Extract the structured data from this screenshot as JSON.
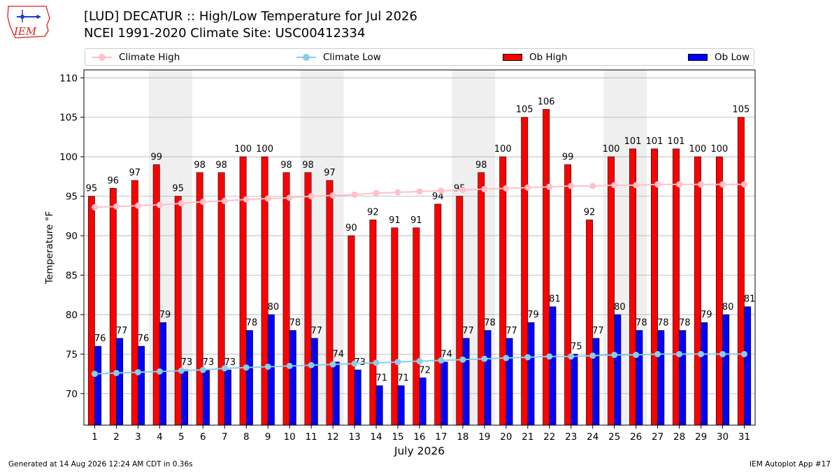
{
  "header": {
    "title_line1": "[LUD] DECATUR :: High/Low Temperature for Jul 2026",
    "title_line2": "NCEI 1991-2020 Climate Site: USC00412334",
    "logo_text": "IEM"
  },
  "legend": {
    "items": [
      {
        "label": "Climate High",
        "color": "#ffc0cb",
        "kind": "line"
      },
      {
        "label": "Climate Low",
        "color": "#87ceeb",
        "kind": "line"
      },
      {
        "label": "Ob High",
        "color": "#ff0000",
        "kind": "box"
      },
      {
        "label": "Ob Low",
        "color": "#0000ff",
        "kind": "box"
      }
    ]
  },
  "footer": {
    "left": "Generated at 14 Aug 2026 12:24 AM CDT in 0.36s",
    "right": "IEM Autoplot App #17"
  },
  "chart_data": {
    "type": "bar",
    "xlabel": "July 2026",
    "ylabel": "Temperature °F",
    "ylim": [
      66,
      111
    ],
    "yticks": [
      70,
      75,
      80,
      85,
      90,
      95,
      100,
      105,
      110
    ],
    "grid": true,
    "legend_position": "top",
    "categories": [
      "1",
      "2",
      "3",
      "4",
      "5",
      "6",
      "7",
      "8",
      "9",
      "10",
      "11",
      "12",
      "13",
      "14",
      "15",
      "16",
      "17",
      "18",
      "19",
      "20",
      "21",
      "22",
      "23",
      "24",
      "25",
      "26",
      "27",
      "28",
      "29",
      "30",
      "31"
    ],
    "weekend_shaded_days": [
      4,
      5,
      11,
      12,
      18,
      19,
      25,
      26
    ],
    "series": [
      {
        "name": "Ob High",
        "type": "bar",
        "color": "#ff0000",
        "values": [
          95,
          96,
          97,
          99,
          95,
          98,
          98,
          100,
          100,
          98,
          98,
          97,
          90,
          92,
          91,
          91,
          94,
          95,
          98,
          100,
          105,
          106,
          99,
          92,
          100,
          101,
          101,
          101,
          100,
          100,
          105
        ]
      },
      {
        "name": "Ob Low",
        "type": "bar",
        "color": "#0000ff",
        "values": [
          76,
          77,
          76,
          79,
          73,
          73,
          73,
          78,
          80,
          78,
          77,
          74,
          73,
          71,
          71,
          72,
          74,
          77,
          78,
          77,
          79,
          81,
          75,
          77,
          80,
          78,
          78,
          78,
          79,
          80,
          81
        ]
      },
      {
        "name": "Climate High",
        "type": "line",
        "color": "#ffc0cb",
        "values": [
          93.6,
          93.7,
          93.8,
          93.9,
          94.1,
          94.3,
          94.4,
          94.6,
          94.7,
          94.8,
          95.0,
          95.1,
          95.2,
          95.4,
          95.5,
          95.6,
          95.7,
          95.8,
          95.9,
          96.0,
          96.1,
          96.2,
          96.3,
          96.3,
          96.4,
          96.4,
          96.5,
          96.5,
          96.5,
          96.5,
          96.5
        ]
      },
      {
        "name": "Climate Low",
        "type": "line",
        "color": "#87ceeb",
        "values": [
          72.5,
          72.6,
          72.7,
          72.8,
          72.9,
          73.0,
          73.2,
          73.3,
          73.4,
          73.5,
          73.6,
          73.7,
          73.8,
          73.9,
          74.0,
          74.1,
          74.2,
          74.3,
          74.4,
          74.5,
          74.6,
          74.7,
          74.7,
          74.8,
          74.9,
          74.9,
          75.0,
          75.0,
          75.0,
          75.0,
          75.0
        ]
      }
    ]
  }
}
